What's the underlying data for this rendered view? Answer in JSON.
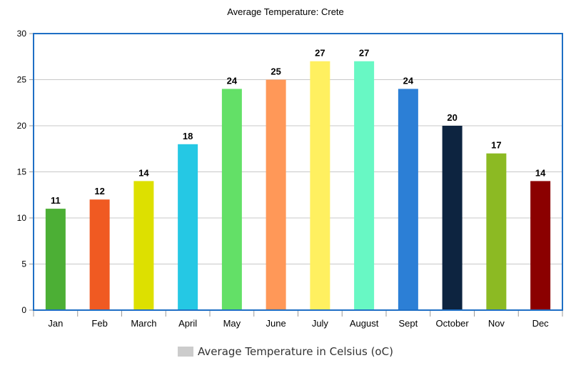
{
  "chart_data": {
    "type": "bar",
    "title": "Average Temperature: Crete",
    "xlabel": "",
    "ylabel": "",
    "ylim": [
      0,
      30
    ],
    "yticks": [
      0,
      5,
      10,
      15,
      20,
      25,
      30
    ],
    "grid": true,
    "legend_position": "bottom",
    "categories": [
      "Jan",
      "Feb",
      "March",
      "April",
      "May",
      "June",
      "July",
      "August",
      "Sept",
      "October",
      "Nov",
      "Dec"
    ],
    "series": [
      {
        "name": "Average Temperature in Celsius (oC)",
        "values": [
          11,
          12,
          14,
          18,
          24,
          25,
          27,
          27,
          24,
          20,
          17,
          14
        ],
        "colors": [
          "#4caf35",
          "#f05a22",
          "#dde000",
          "#25c8e4",
          "#63e067",
          "#ff9858",
          "#fff060",
          "#68f8c4",
          "#2c7fd6",
          "#0d2440",
          "#8cba23",
          "#8b0000"
        ]
      }
    ],
    "legend_color": "#cccccc",
    "plot_border_color": "#1f6fc5"
  }
}
